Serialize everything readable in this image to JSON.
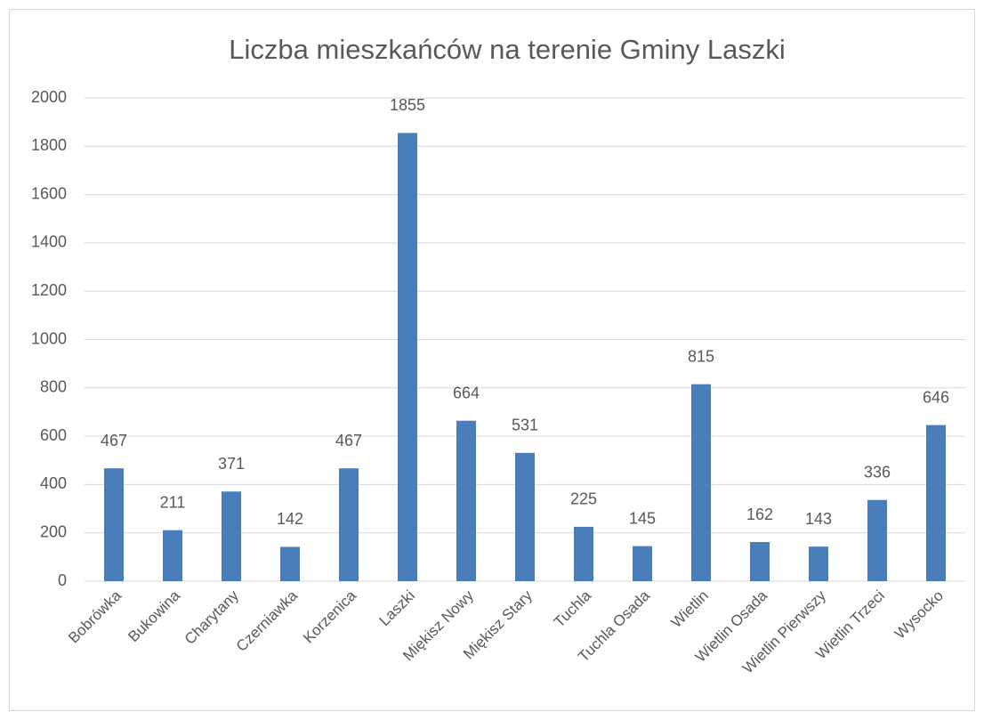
{
  "chart_data": {
    "type": "bar",
    "title": "Liczba mieszkańców na terenie Gminy Laszki",
    "categories": [
      "Bobrówka",
      "Bukowina",
      "Charytany",
      "Czerniawka",
      "Korzenica",
      "Laszki",
      "Miękisz Nowy",
      "Miękisz Stary",
      "Tuchla",
      "Tuchla Osada",
      "Wietlin",
      "Wietlin Osada",
      "Wietlin Pierwszy",
      "Wietlin Trzeci",
      "Wysocko"
    ],
    "values": [
      467,
      211,
      371,
      142,
      467,
      1855,
      664,
      531,
      225,
      145,
      815,
      162,
      143,
      336,
      646
    ],
    "color": "#4a7ebb",
    "ylim": [
      0,
      2000
    ],
    "yticks": [
      0,
      200,
      400,
      600,
      800,
      1000,
      1200,
      1400,
      1600,
      1800,
      2000
    ],
    "grid": true
  }
}
